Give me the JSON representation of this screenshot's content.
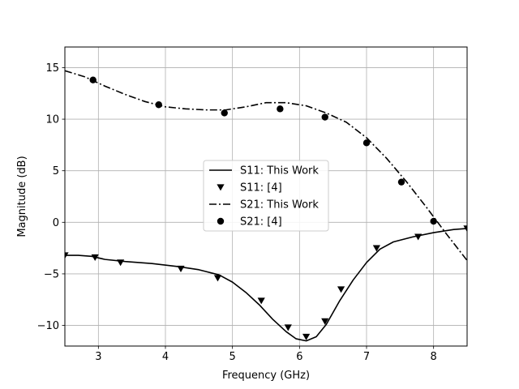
{
  "chart_data": {
    "type": "line",
    "title": "",
    "xlabel": "Frequency (GHz)",
    "ylabel": "Magnitude (dB)",
    "xlim": [
      2.5,
      8.5
    ],
    "ylim": [
      -12,
      17
    ],
    "xticks": [
      3,
      4,
      5,
      6,
      7,
      8
    ],
    "yticks": [
      -10,
      -5,
      0,
      5,
      10,
      15
    ],
    "grid": true,
    "legend_position": "center-right",
    "series": [
      {
        "name": "S11: This Work",
        "style": "solid",
        "marker": "none",
        "color": "#000000",
        "x": [
          2.5,
          2.7,
          2.9,
          3.1,
          3.4,
          3.8,
          4.2,
          4.5,
          4.8,
          5.0,
          5.2,
          5.4,
          5.6,
          5.8,
          5.95,
          6.1,
          6.25,
          6.4,
          6.6,
          6.8,
          7.0,
          7.2,
          7.4,
          7.7,
          8.0,
          8.3,
          8.5
        ],
        "y": [
          -3.2,
          -3.2,
          -3.3,
          -3.6,
          -3.8,
          -4.0,
          -4.3,
          -4.6,
          -5.1,
          -5.8,
          -6.8,
          -8.0,
          -9.4,
          -10.6,
          -11.3,
          -11.5,
          -11.1,
          -9.9,
          -7.6,
          -5.6,
          -3.9,
          -2.6,
          -1.9,
          -1.4,
          -1.0,
          -0.7,
          -0.6
        ]
      },
      {
        "name": "S11: [4]",
        "style": "none",
        "marker": "triangle-down",
        "color": "#000000",
        "x": [
          2.5,
          2.95,
          3.33,
          4.23,
          4.78,
          5.43,
          5.83,
          6.1,
          6.38,
          6.62,
          7.15,
          7.77,
          8.5
        ],
        "y": [
          -3.2,
          -3.4,
          -3.9,
          -4.5,
          -5.4,
          -7.6,
          -10.2,
          -11.1,
          -9.6,
          -6.5,
          -2.5,
          -1.4,
          -0.6
        ]
      },
      {
        "name": "S21: This Work",
        "style": "dashdot",
        "marker": "none",
        "color": "#000000",
        "x": [
          2.5,
          2.8,
          3.1,
          3.4,
          3.7,
          4.0,
          4.3,
          4.6,
          4.9,
          5.2,
          5.5,
          5.8,
          6.1,
          6.4,
          6.7,
          7.0,
          7.3,
          7.6,
          7.9,
          8.2,
          8.5
        ],
        "y": [
          14.7,
          14.1,
          13.2,
          12.4,
          11.7,
          11.2,
          11.0,
          10.9,
          10.9,
          11.2,
          11.6,
          11.6,
          11.3,
          10.6,
          9.7,
          8.2,
          6.2,
          3.9,
          1.4,
          -1.2,
          -3.7
        ]
      },
      {
        "name": "S21: [4]",
        "style": "none",
        "marker": "circle",
        "color": "#000000",
        "x": [
          2.92,
          3.9,
          4.88,
          5.71,
          6.38,
          7.0,
          7.52,
          8.0
        ],
        "y": [
          13.8,
          11.4,
          10.6,
          11.0,
          10.2,
          7.7,
          3.9,
          0.1
        ]
      }
    ]
  }
}
